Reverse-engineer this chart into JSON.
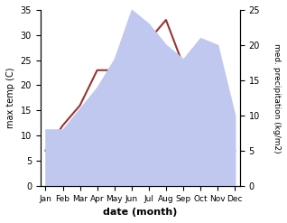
{
  "months": [
    "Jan",
    "Feb",
    "Mar",
    "Apr",
    "May",
    "Jun",
    "Jul",
    "Aug",
    "Sep",
    "Oct",
    "Nov",
    "Dec"
  ],
  "x": [
    0,
    1,
    2,
    3,
    4,
    5,
    6,
    7,
    8,
    9,
    10,
    11
  ],
  "temperature": [
    7,
    12,
    16,
    23,
    23,
    30,
    29,
    33,
    24,
    17,
    10,
    7
  ],
  "precipitation": [
    8,
    8,
    11,
    14,
    18,
    25,
    23,
    20,
    18,
    21,
    20,
    10
  ],
  "temp_color": "#993333",
  "precip_fill_color": "#c0c8f0",
  "left_ylim": [
    0,
    35
  ],
  "right_ylim": [
    0,
    25
  ],
  "left_yticks": [
    0,
    5,
    10,
    15,
    20,
    25,
    30,
    35
  ],
  "right_yticks": [
    0,
    5,
    10,
    15,
    20,
    25
  ],
  "xlabel": "date (month)",
  "ylabel_left": "max temp (C)",
  "ylabel_right": "med. precipitation (kg/m2)"
}
